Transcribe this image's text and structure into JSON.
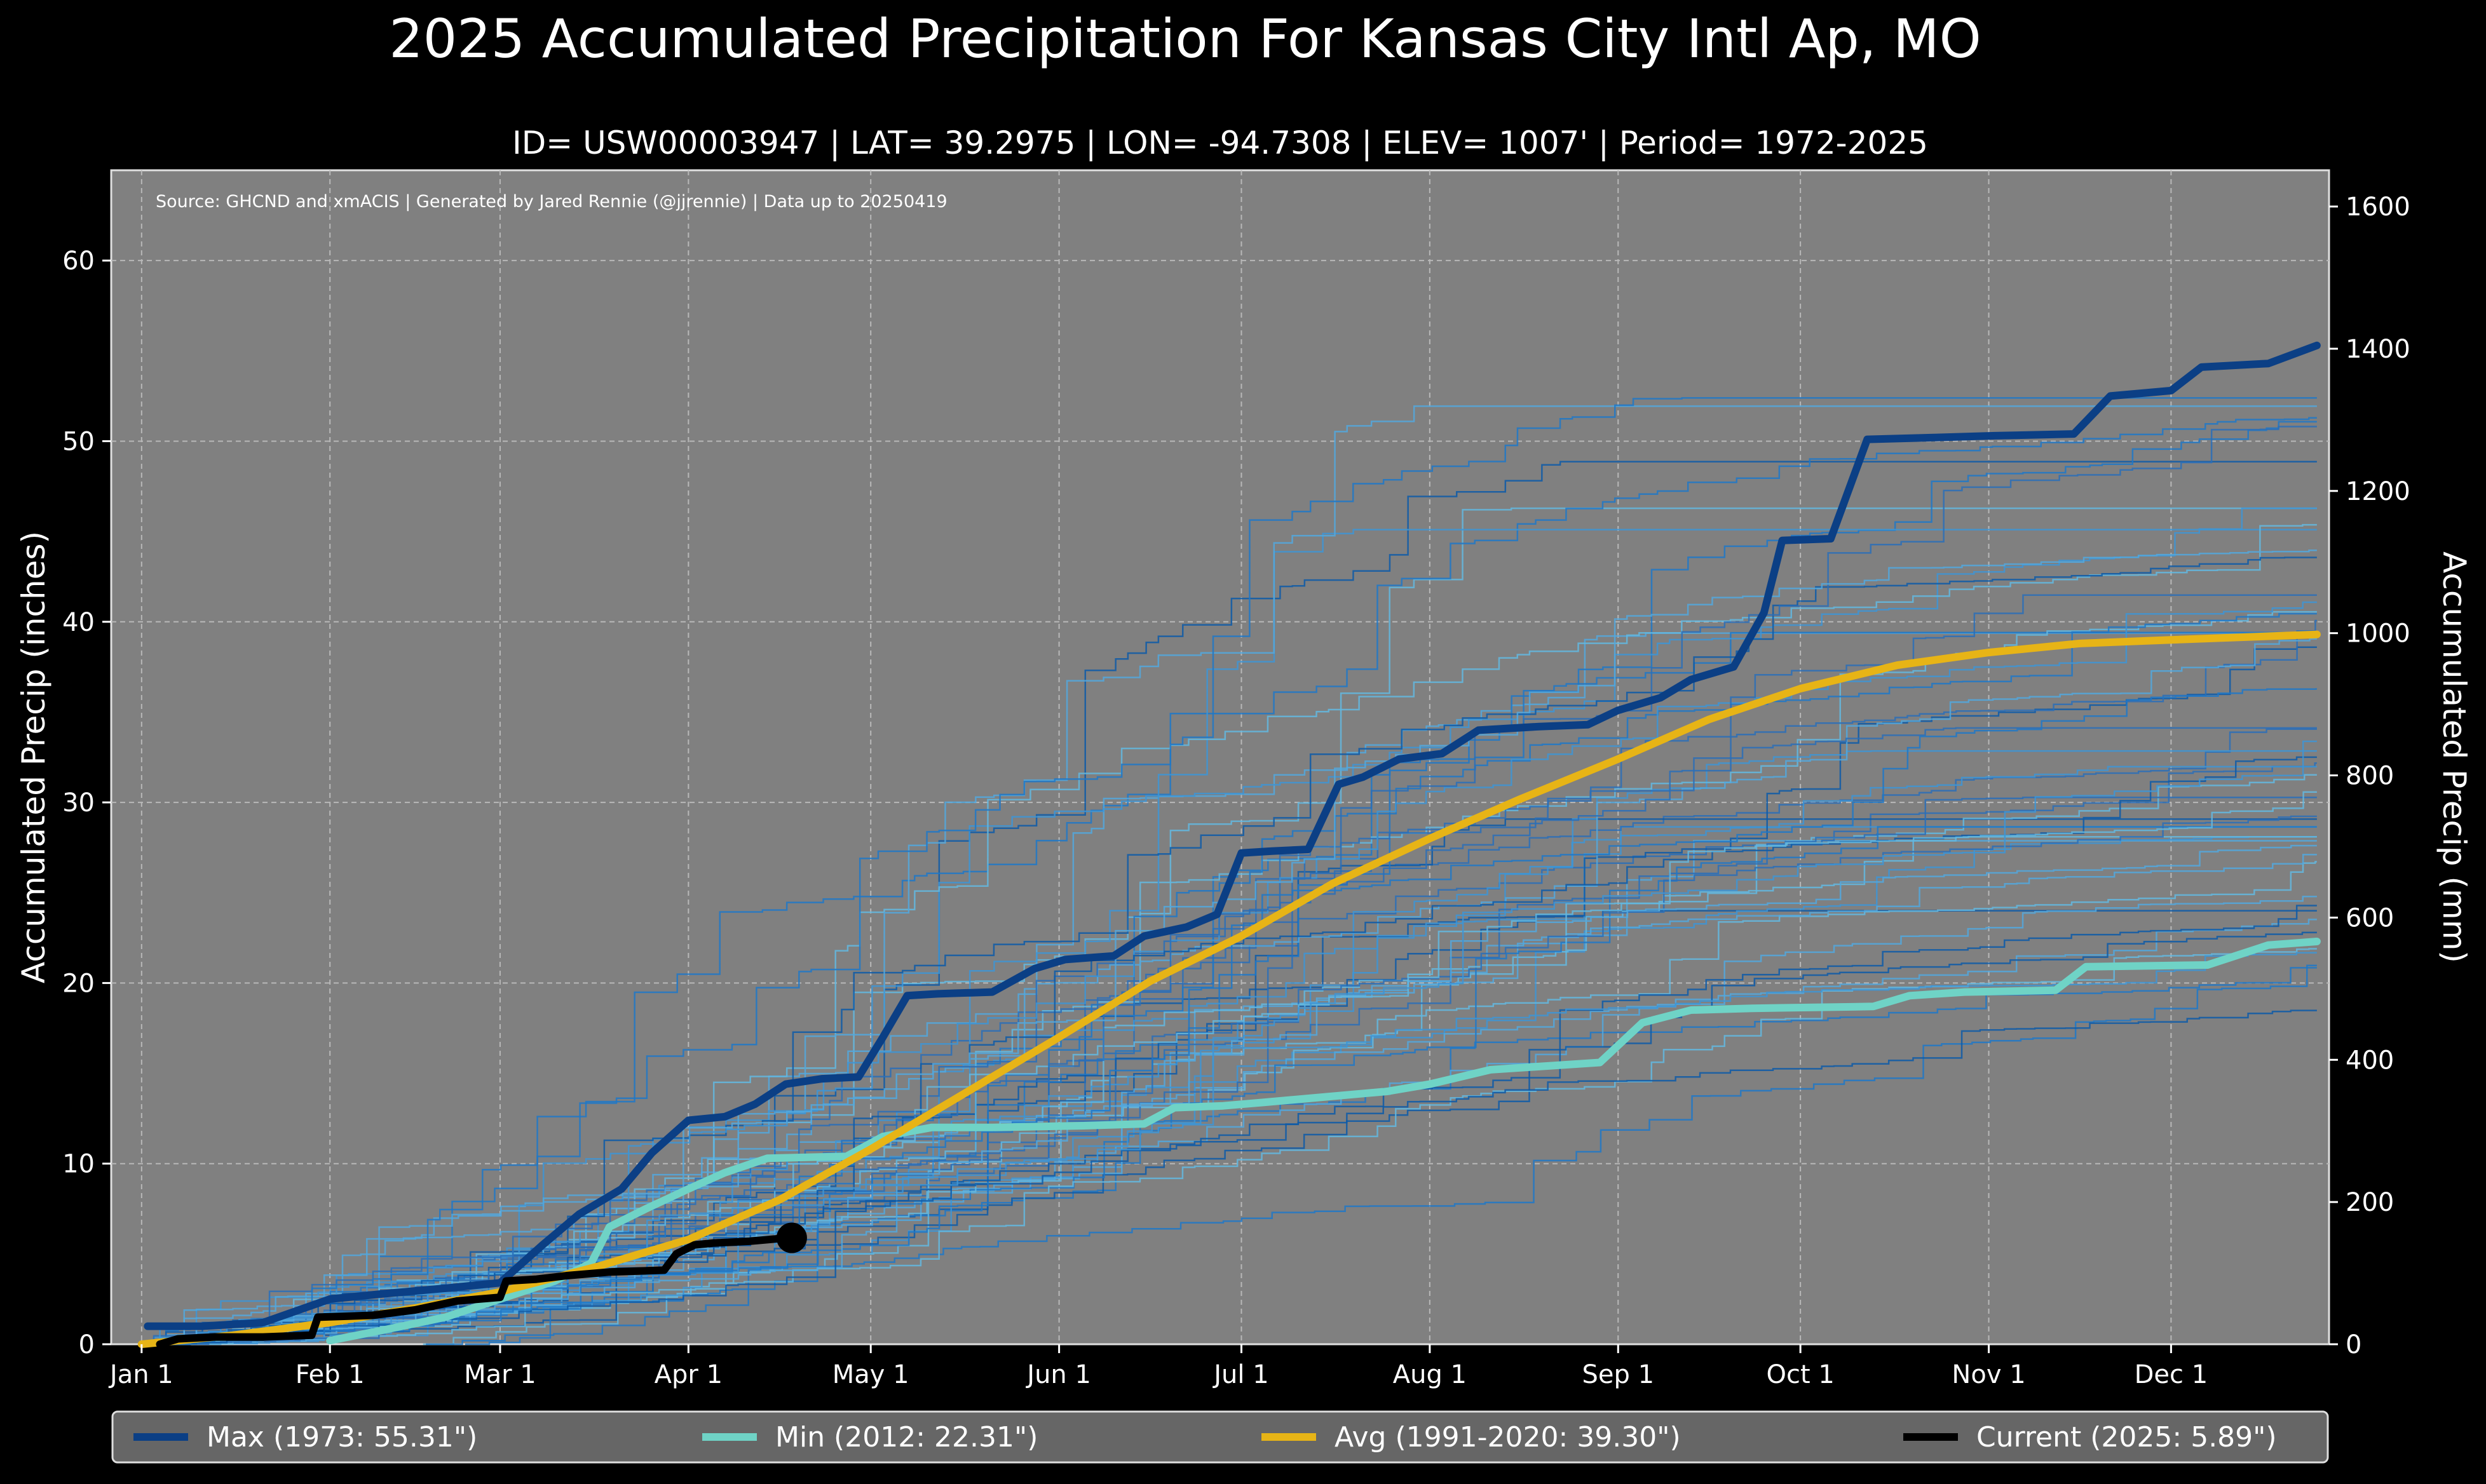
{
  "title": "2025 Accumulated Precipitation For Kansas City Intl Ap, MO",
  "subtitle": "ID= USW00003947 | LAT= 39.2975 | LON= -94.7308 | ELEV= 1007' | Period= 1972-2025",
  "source_note": "Source: GHCND and xmACIS | Generated by Jared Rennie (@jjrennie) | Data up to 20250419",
  "colors": {
    "background": "#000000",
    "plot_bg": "#808080",
    "max": "#0b3f85",
    "min": "#6fd3c6",
    "avg": "#e7b416",
    "current": "#000000",
    "years_dark": "#0d5aa8",
    "years_light": "#52a8de"
  },
  "chart_data": {
    "type": "line",
    "title": "2025 Accumulated Precipitation For Kansas City Intl Ap, MO",
    "xlabel": "",
    "ylabel": "Accumulated Precip (inches)",
    "ylabel_right": "Accumulated Precip (mm)",
    "xlim": [
      -5,
      360
    ],
    "ylim": [
      0,
      65
    ],
    "ylim_right_mm": [
      0,
      1651
    ],
    "x_ticks": [
      {
        "day": 0,
        "label": "Jan 1"
      },
      {
        "day": 31,
        "label": "Feb 1"
      },
      {
        "day": 59,
        "label": "Mar 1"
      },
      {
        "day": 90,
        "label": "Apr 1"
      },
      {
        "day": 120,
        "label": "May 1"
      },
      {
        "day": 151,
        "label": "Jun 1"
      },
      {
        "day": 181,
        "label": "Jul 1"
      },
      {
        "day": 212,
        "label": "Aug 1"
      },
      {
        "day": 243,
        "label": "Sep 1"
      },
      {
        "day": 273,
        "label": "Oct 1"
      },
      {
        "day": 304,
        "label": "Nov 1"
      },
      {
        "day": 334,
        "label": "Dec 1"
      }
    ],
    "y_ticks": [
      0,
      10,
      20,
      30,
      40,
      50,
      60
    ],
    "y_ticks_right": [
      0,
      200,
      400,
      600,
      800,
      1000,
      1200,
      1400,
      1600
    ],
    "grid": true,
    "legend_position": "bottom",
    "series": [
      {
        "name": "Max (1973:  55.31\")",
        "color": "#0b3f85",
        "width": 12,
        "points": [
          [
            1,
            1
          ],
          [
            10,
            1
          ],
          [
            20,
            1.2
          ],
          [
            31,
            2.5
          ],
          [
            40,
            2.8
          ],
          [
            50,
            3.1
          ],
          [
            59,
            3.4
          ],
          [
            66,
            5.5
          ],
          [
            72,
            7.2
          ],
          [
            79,
            8.6
          ],
          [
            84,
            10.6
          ],
          [
            90,
            12.4
          ],
          [
            96,
            12.6
          ],
          [
            101,
            13.3
          ],
          [
            106,
            14.4
          ],
          [
            112,
            14.7
          ],
          [
            118,
            14.8
          ],
          [
            122,
            17
          ],
          [
            126,
            19.3
          ],
          [
            131,
            19.4
          ],
          [
            140,
            19.5
          ],
          [
            147,
            20.8
          ],
          [
            152,
            21.3
          ],
          [
            160,
            21.5
          ],
          [
            165,
            22.6
          ],
          [
            172,
            23.1
          ],
          [
            177,
            23.8
          ],
          [
            181,
            27.2
          ],
          [
            186,
            27.3
          ],
          [
            192,
            27.4
          ],
          [
            197,
            31
          ],
          [
            201,
            31.4
          ],
          [
            207,
            32.4
          ],
          [
            214,
            32.7
          ],
          [
            220,
            34
          ],
          [
            230,
            34.2
          ],
          [
            238,
            34.3
          ],
          [
            243,
            35.1
          ],
          [
            250,
            35.8
          ],
          [
            255,
            36.8
          ],
          [
            262,
            37.5
          ],
          [
            267,
            40.5
          ],
          [
            270,
            44.5
          ],
          [
            278,
            44.6
          ],
          [
            284,
            50.1
          ],
          [
            295,
            50.2
          ],
          [
            305,
            50.3
          ],
          [
            318,
            50.4
          ],
          [
            324,
            52.5
          ],
          [
            334,
            52.8
          ],
          [
            339,
            54.1
          ],
          [
            350,
            54.3
          ],
          [
            358,
            55.3
          ]
        ]
      },
      {
        "name": "Min (2012:  22.31\")",
        "color": "#6fd3c6",
        "width": 12,
        "points": [
          [
            31,
            0.2
          ],
          [
            40,
            0.8
          ],
          [
            50,
            1.5
          ],
          [
            59,
            2.5
          ],
          [
            68,
            3.5
          ],
          [
            74,
            4.5
          ],
          [
            77,
            6.5
          ],
          [
            83,
            7.5
          ],
          [
            90,
            8.6
          ],
          [
            96,
            9.5
          ],
          [
            103,
            10.3
          ],
          [
            116,
            10.4
          ],
          [
            122,
            11.5
          ],
          [
            130,
            12
          ],
          [
            140,
            12
          ],
          [
            155,
            12.1
          ],
          [
            165,
            12.2
          ],
          [
            170,
            13.1
          ],
          [
            178,
            13.2
          ],
          [
            185,
            13.4
          ],
          [
            195,
            13.7
          ],
          [
            205,
            14
          ],
          [
            212,
            14.4
          ],
          [
            222,
            15.2
          ],
          [
            240,
            15.6
          ],
          [
            247,
            17.8
          ],
          [
            255,
            18.5
          ],
          [
            265,
            18.6
          ],
          [
            285,
            18.7
          ],
          [
            291,
            19.3
          ],
          [
            300,
            19.5
          ],
          [
            315,
            19.6
          ],
          [
            320,
            20.9
          ],
          [
            340,
            21
          ],
          [
            350,
            22.1
          ],
          [
            358,
            22.3
          ]
        ]
      },
      {
        "name": "Avg (1991-2020:  39.30\")",
        "color": "#e7b416",
        "width": 12,
        "points": [
          [
            0,
            0
          ],
          [
            15,
            0.5
          ],
          [
            31,
            1.2
          ],
          [
            45,
            2
          ],
          [
            59,
            2.9
          ],
          [
            75,
            4.3
          ],
          [
            90,
            5.8
          ],
          [
            105,
            8
          ],
          [
            120,
            10.8
          ],
          [
            135,
            13.8
          ],
          [
            151,
            17
          ],
          [
            166,
            20.1
          ],
          [
            181,
            22.6
          ],
          [
            196,
            25.5
          ],
          [
            212,
            28
          ],
          [
            227,
            30.2
          ],
          [
            243,
            32.4
          ],
          [
            258,
            34.6
          ],
          [
            273,
            36.3
          ],
          [
            289,
            37.6
          ],
          [
            304,
            38.3
          ],
          [
            319,
            38.8
          ],
          [
            334,
            39.0
          ],
          [
            350,
            39.2
          ],
          [
            358,
            39.3
          ]
        ]
      },
      {
        "name": "Current (2025:   5.89\")",
        "color": "#000000",
        "width": 12,
        "points": [
          [
            3,
            0
          ],
          [
            6,
            0.3
          ],
          [
            12,
            0.4
          ],
          [
            20,
            0.4
          ],
          [
            28,
            0.5
          ],
          [
            29,
            1.5
          ],
          [
            38,
            1.6
          ],
          [
            45,
            1.9
          ],
          [
            52,
            2.4
          ],
          [
            59,
            2.6
          ],
          [
            60,
            3.5
          ],
          [
            65,
            3.6
          ],
          [
            70,
            3.8
          ],
          [
            77,
            4.0
          ],
          [
            86,
            4.1
          ],
          [
            88,
            5.0
          ],
          [
            91,
            5.5
          ],
          [
            94,
            5.6
          ],
          [
            100,
            5.7
          ],
          [
            105,
            5.85
          ],
          [
            107,
            5.89
          ]
        ]
      }
    ],
    "current_marker": {
      "day": 107,
      "value": 5.89
    }
  },
  "legend": [
    {
      "label": "Max (1973:  55.31\")",
      "color": "#0b3f85"
    },
    {
      "label": "Min (2012:  22.31\")",
      "color": "#6fd3c6"
    },
    {
      "label": "Avg (1991-2020:  39.30\")",
      "color": "#e7b416"
    },
    {
      "label": "Current (2025:   5.89\")",
      "color": "#000000"
    }
  ]
}
